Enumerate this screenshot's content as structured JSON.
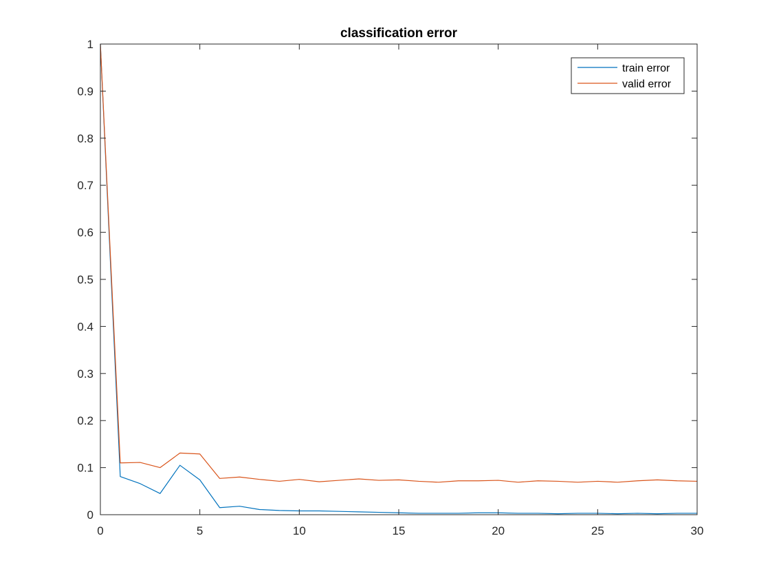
{
  "chart_data": {
    "type": "line",
    "title": "classification error",
    "xlabel": "",
    "ylabel": "",
    "xlim": [
      0,
      30
    ],
    "ylim": [
      0,
      1
    ],
    "xticks": [
      "0",
      "5",
      "10",
      "15",
      "20",
      "25",
      "30"
    ],
    "yticks": [
      "0",
      "0.1",
      "0.2",
      "0.3",
      "0.4",
      "0.5",
      "0.6",
      "0.7",
      "0.8",
      "0.9",
      "1"
    ],
    "grid": false,
    "legend_position": "top-right",
    "x": [
      0,
      1,
      2,
      3,
      4,
      5,
      6,
      7,
      8,
      9,
      10,
      11,
      12,
      13,
      14,
      15,
      16,
      17,
      18,
      19,
      20,
      21,
      22,
      23,
      24,
      25,
      26,
      27,
      28,
      29,
      30
    ],
    "series": [
      {
        "name": "train error",
        "color": "#0072BD",
        "values": [
          1.0,
          0.081,
          0.066,
          0.045,
          0.105,
          0.074,
          0.015,
          0.018,
          0.011,
          0.009,
          0.008,
          0.008,
          0.007,
          0.006,
          0.005,
          0.004,
          0.003,
          0.003,
          0.003,
          0.004,
          0.004,
          0.003,
          0.003,
          0.002,
          0.003,
          0.003,
          0.002,
          0.003,
          0.002,
          0.003,
          0.003
        ]
      },
      {
        "name": "valid error",
        "color": "#D95319",
        "values": [
          1.0,
          0.11,
          0.111,
          0.1,
          0.131,
          0.129,
          0.077,
          0.08,
          0.075,
          0.071,
          0.075,
          0.07,
          0.073,
          0.076,
          0.073,
          0.074,
          0.071,
          0.069,
          0.072,
          0.072,
          0.073,
          0.069,
          0.072,
          0.071,
          0.069,
          0.071,
          0.069,
          0.072,
          0.074,
          0.072,
          0.071
        ]
      }
    ]
  }
}
